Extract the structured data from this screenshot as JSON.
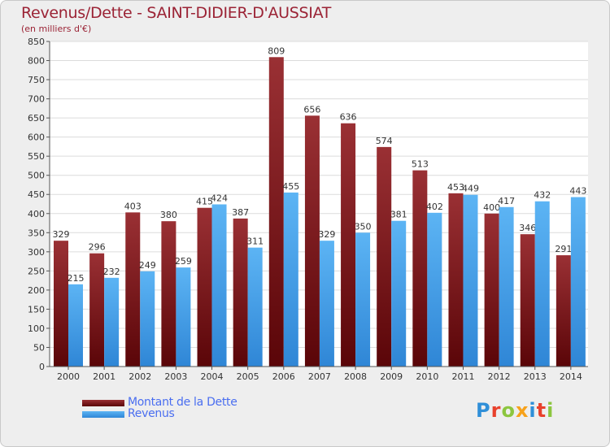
{
  "title": "Revenus/Dette - SAINT-DIDIER-D'AUSSIAT",
  "subtitle": "(en milliers d'€)",
  "logo": "Proxiti",
  "colors": {
    "dette": "#7a1418",
    "revenus": "#4aa6ee",
    "title": "#9b2335",
    "legend_text": "#4a6ef0"
  },
  "chart_data": {
    "type": "bar",
    "title": "Revenus/Dette - SAINT-DIDIER-D'AUSSIAT",
    "subtitle": "(en milliers d'€)",
    "xlabel": "",
    "ylabel": "",
    "categories": [
      "2000",
      "2001",
      "2002",
      "2003",
      "2004",
      "2005",
      "2006",
      "2007",
      "2008",
      "2009",
      "2010",
      "2011",
      "2012",
      "2013",
      "2014"
    ],
    "series": [
      {
        "name": "Montant de la Dette",
        "color": "#7a1418",
        "values": [
          329,
          296,
          403,
          380,
          415,
          387,
          809,
          656,
          636,
          574,
          513,
          453,
          400,
          346,
          291
        ]
      },
      {
        "name": "Revenus",
        "color": "#4aa6ee",
        "values": [
          215,
          232,
          249,
          259,
          424,
          311,
          455,
          329,
          350,
          381,
          402,
          449,
          417,
          432,
          443
        ]
      }
    ],
    "ylim": [
      0,
      850
    ],
    "yticks": [
      0,
      50,
      100,
      150,
      200,
      250,
      300,
      350,
      400,
      450,
      500,
      550,
      600,
      650,
      700,
      750,
      800,
      850
    ],
    "grid": true,
    "legend": "bottom-left"
  }
}
